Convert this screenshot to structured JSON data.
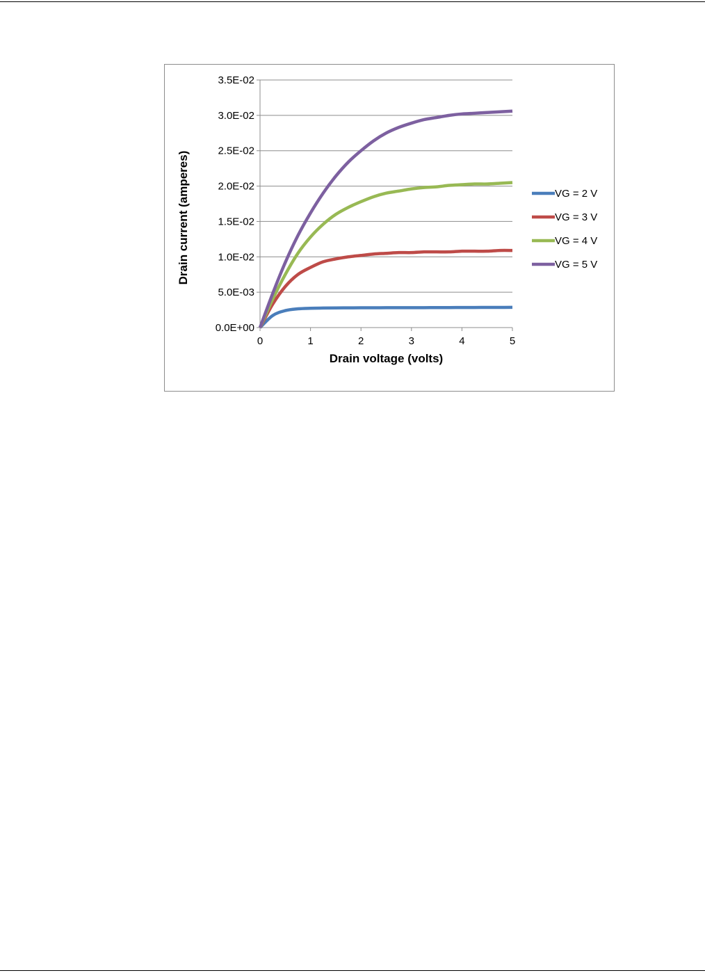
{
  "chart_data": {
    "type": "line",
    "title": "",
    "xlabel": "Drain voltage (volts)",
    "ylabel": "Drain current (amperes)",
    "xlim": [
      0,
      5
    ],
    "ylim": [
      0,
      0.035
    ],
    "x_ticks": [
      "0",
      "1",
      "2",
      "3",
      "4",
      "5"
    ],
    "y_ticks": [
      "0.0E+00",
      "5.0E-03",
      "1.0E-02",
      "1.5E-02",
      "2.0E-02",
      "2.5E-02",
      "3.0E-02",
      "3.5E-02"
    ],
    "grid": "horizontal",
    "legend_position": "right",
    "x": [
      0,
      0.25,
      0.5,
      0.75,
      1,
      1.25,
      1.5,
      1.75,
      2,
      2.25,
      2.5,
      2.75,
      3,
      3.25,
      3.5,
      3.75,
      4,
      4.25,
      4.5,
      4.75,
      5
    ],
    "series": [
      {
        "name": "VG = 2 V",
        "color": "#4a7ebb",
        "values": [
          0,
          0.0017,
          0.0024,
          0.00265,
          0.00273,
          0.00276,
          0.00278,
          0.00279,
          0.0028,
          0.0028,
          0.00281,
          0.00281,
          0.00282,
          0.00282,
          0.00283,
          0.00283,
          0.00284,
          0.00284,
          0.00285,
          0.00285,
          0.00286
        ]
      },
      {
        "name": "VG = 3 V",
        "color": "#be4b48",
        "values": [
          0,
          0.0033,
          0.0058,
          0.0075,
          0.0085,
          0.0093,
          0.0097,
          0.01,
          0.0102,
          0.0104,
          0.0105,
          0.0106,
          0.0106,
          0.0107,
          0.0107,
          0.0107,
          0.0108,
          0.0108,
          0.0108,
          0.0109,
          0.0109
        ]
      },
      {
        "name": "VG = 4 V",
        "color": "#98b954",
        "values": [
          0,
          0.004,
          0.0075,
          0.0105,
          0.0128,
          0.0146,
          0.016,
          0.017,
          0.0178,
          0.0185,
          0.019,
          0.0193,
          0.0196,
          0.0198,
          0.0199,
          0.0201,
          0.0202,
          0.0203,
          0.0203,
          0.0204,
          0.0205
        ]
      },
      {
        "name": "VG = 5 V",
        "color": "#7d60a0",
        "values": [
          0,
          0.0048,
          0.0092,
          0.013,
          0.0162,
          0.019,
          0.0214,
          0.0234,
          0.025,
          0.0264,
          0.0275,
          0.0283,
          0.0289,
          0.0294,
          0.0297,
          0.03,
          0.0302,
          0.0303,
          0.0304,
          0.0305,
          0.0306
        ]
      }
    ]
  }
}
